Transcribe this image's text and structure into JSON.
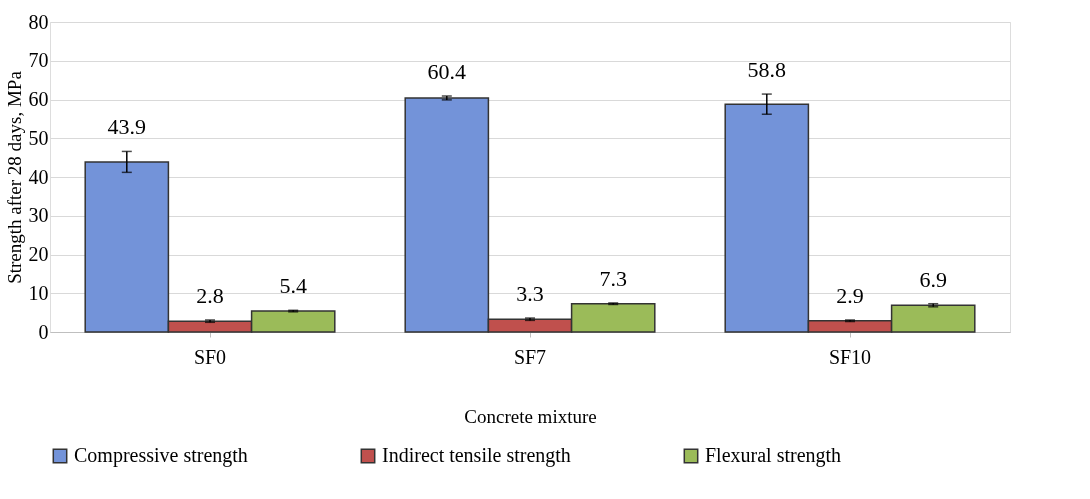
{
  "chart_data": {
    "type": "bar",
    "xlabel": "Concrete mixture",
    "ylabel": "Strength after 28 days, MPa",
    "categories": [
      "SF0",
      "SF7",
      "SF10"
    ],
    "series": [
      {
        "name": "Compressive strength",
        "color": "#7393d9",
        "values": [
          43.9,
          60.4,
          58.8
        ],
        "errors": [
          2.7,
          0.5,
          2.6
        ]
      },
      {
        "name": "Indirect tensile strength",
        "color": "#c0504d",
        "values": [
          2.8,
          3.3,
          2.9
        ],
        "errors": [
          0.3,
          0.3,
          0.2
        ]
      },
      {
        "name": "Flexural strength",
        "color": "#9bbb59",
        "values": [
          5.4,
          7.3,
          6.9
        ],
        "errors": [
          0.2,
          0.2,
          0.4
        ]
      }
    ],
    "ylim": [
      0,
      80
    ],
    "yticks": [
      0,
      10,
      20,
      30,
      40,
      50,
      60,
      70,
      80
    ],
    "grid": "y",
    "legend": "bottom",
    "data_labels": true
  }
}
